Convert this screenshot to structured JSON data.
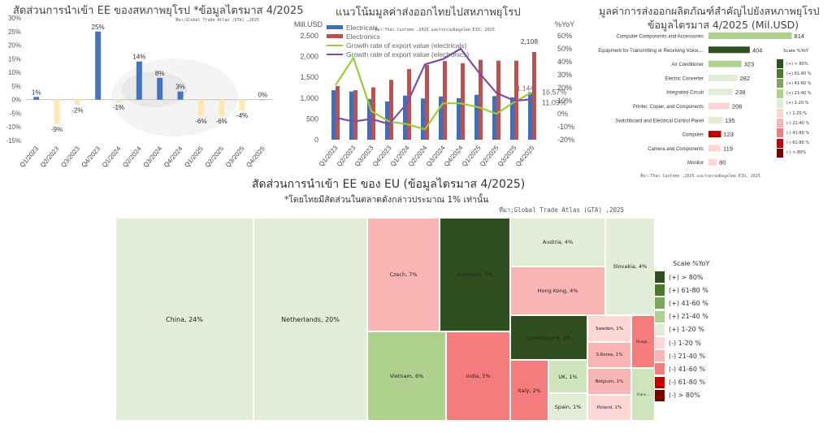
{
  "colors": {
    "bar_blue": "#4472c4",
    "bar_cream": "#ffe7b3",
    "electricals": "#3b6fbf",
    "electronics": "#c0504d",
    "growth_electricals": "#9acd32",
    "growth_electronics": "#7b4fa8",
    "scale": [
      "#2f4f1f",
      "#4a7a2c",
      "#7aa85a",
      "#aed18e",
      "#e2edd7",
      "#ffd6d6",
      "#f9b4b4",
      "#f47c7c",
      "#c00000",
      "#7a0000"
    ]
  },
  "scale": {
    "title": "Scale %YoY",
    "labels": [
      "(+) > 80%",
      "(+) 61-80 %",
      "(+) 41-60 %",
      "(+) 21-40 %",
      "(+) 1-20 %",
      "(-) 1-20 %",
      "(-) 21-40 %",
      "(-) 41-60 %",
      "(-) 61-80 %",
      "(-) > 80%"
    ]
  },
  "small_scale": {
    "title": "Scale %YoY",
    "labels": [
      "(+) > 80%",
      "(+) 61-80 %",
      "(+) 41-60 %",
      "(+) 21-40 %",
      "(+) 1-20 %",
      "(-) 1-20 %",
      "(-) 21-40 %",
      "(-) 41-60 %",
      "(-) 61-80 %",
      "(-) > 80%"
    ]
  },
  "chart_data": [
    {
      "id": "left",
      "type": "bar",
      "title": "สัดส่วนการนำเข้า EE ของสหภาพยุโรป *ข้อมูลไตรมาส 4/2025",
      "source": "ที่มา;Global Trade Atlas (GTA) ,2025",
      "categories": [
        "Q1/2023",
        "Q2/2023",
        "Q3/2023",
        "Q4/2023",
        "Q1/2024",
        "Q2/2024",
        "Q3/2024",
        "Q4/2024",
        "Q1/2025",
        "Q2/2025",
        "Q3/2025",
        "Q4/2025"
      ],
      "values": [
        1,
        -9,
        -2,
        25,
        -1,
        14,
        8,
        3,
        -6,
        -6,
        -4,
        0
      ],
      "labels": [
        "1%",
        "-9%",
        "-2%",
        "25%",
        "-1%",
        "14%",
        "8%",
        "3%",
        "-6%",
        "-6%",
        "-4%",
        "0%"
      ],
      "ylim": [
        -15,
        30
      ],
      "yticks": [
        "30%",
        "25%",
        "20%",
        "15%",
        "10%",
        "5%",
        "0%",
        "-5%",
        "-10%",
        "-15%"
      ]
    },
    {
      "id": "middle",
      "type": "bar+line",
      "title": "แนวโน้มมูลค่าส่งออกไทยไปสหภาพยุโรป",
      "source": "ที่มา:Thai Customs ,2025 และรวบรวมข้อมูลโดย EIU, 2025",
      "ylabel_left": "Mill.USD",
      "ylabel_right": "%YoY",
      "categories": [
        "Q1/2023",
        "Q2/2023",
        "Q3/2023",
        "Q4/2023",
        "Q1/2024",
        "Q2/2024",
        "Q3/2024",
        "Q4/2024",
        "Q1/2025",
        "Q2/2025",
        "Q3/2025",
        "Q4/2025"
      ],
      "ylim_left": [
        0,
        2500
      ],
      "yticks_left": [
        "2,500",
        "2,000",
        "1,500",
        "1,000",
        "500",
        "0"
      ],
      "ylim_right": [
        -20,
        60
      ],
      "yticks_right": [
        "60%",
        "50%",
        "40%",
        "30%",
        "20%",
        "10%",
        "0%",
        "-10%",
        "-20%"
      ],
      "series": [
        {
          "name": "Electricals",
          "kind": "bar",
          "values": [
            1190,
            1160,
            980,
            920,
            1060,
            990,
            1040,
            1000,
            1080,
            1050,
            1020,
            1144
          ]
        },
        {
          "name": "Electronics",
          "kind": "bar",
          "values": [
            1290,
            1190,
            1260,
            1440,
            1700,
            1800,
            1890,
            1840,
            1920,
            1900,
            1900,
            2108
          ]
        },
        {
          "name": "Growth rate of export value (electricals)",
          "kind": "line",
          "values": [
            22,
            43,
            2,
            -6,
            -8,
            -12,
            8,
            8,
            5,
            0,
            9,
            16.57
          ]
        },
        {
          "name": "Growth rate of export value (electronics)",
          "kind": "line",
          "values": [
            -3,
            -6,
            -4,
            -8,
            8,
            38,
            42,
            50,
            32,
            16,
            10,
            11.09
          ]
        }
      ],
      "point_labels": {
        "electricals_last": "1,144",
        "electronics_last": "2,108",
        "growth_electricals_last": "16.57%",
        "growth_electronics_last": "11.09%"
      }
    },
    {
      "id": "right",
      "type": "bar",
      "orientation": "horizontal",
      "title_line1": "มูลค่าการส่งออกผลิตภัณฑ์สำคัญไปยังสหภาพยุโรป",
      "title_line2": "ข้อมูลไตรมาส 4/2025 (Mil.USD)",
      "source": "ที่มา:Thai Customs ,2025 และรวบรวมข้อมูลโดย EIU, 2025",
      "categories": [
        "Computer Components and Accessories",
        "Equipment for Transmitting or Receiving Voice,...",
        "Air Conditioner",
        "Electric Converter",
        "Integrated Circuit",
        "Printer, Copier, and Components",
        "Switchboard and Electrical Control Panel",
        "Computer",
        "Camera and Components",
        "Monitor"
      ],
      "values": [
        814,
        404,
        323,
        282,
        238,
        206,
        135,
        123,
        119,
        80
      ],
      "labels": [
        "814",
        "404",
        "323",
        "282",
        "238",
        "206",
        "135",
        "123",
        "119",
        "80"
      ],
      "bar_colors": [
        "#aed18e",
        "#2f4f1f",
        "#aed18e",
        "#e2edd7",
        "#e2edd7",
        "#ffd6d6",
        "#e2edd7",
        "#c00000",
        "#ffd6d6",
        "#ffd6d6"
      ]
    },
    {
      "id": "treemap",
      "type": "treemap",
      "title": "สัดส่วนการนำเข้า EE ของ EU (ข้อมูลไตรมาส 4/2025)",
      "subtitle": "*โดยไทยมีสัดส่วนในตลาดดังกล่าวประมาณ 1% เท่านั้น",
      "source": "ที่มา;Global Trade Atlas (GTA) ,2025",
      "items": [
        {
          "label": "China, 24%",
          "share": 24,
          "color": "#e2edd7"
        },
        {
          "label": "Netherlands, 20%",
          "share": 20,
          "color": "#e2edd7"
        },
        {
          "label": "Czech, 7%",
          "share": 7,
          "color": "#f9b4b4"
        },
        {
          "label": "Germany, 7%",
          "share": 7,
          "color": "#2f4f1f"
        },
        {
          "label": "Austria, 4%",
          "share": 4,
          "color": "#e2edd7"
        },
        {
          "label": "Slovakia, 4%",
          "share": 4,
          "color": "#e2edd7"
        },
        {
          "label": "Hong Kong, 4%",
          "share": 4,
          "color": "#f9b4b4"
        },
        {
          "label": "Vietnam, 6%",
          "share": 6,
          "color": "#aed18e"
        },
        {
          "label": "India, 5%",
          "share": 5,
          "color": "#f47c7c"
        },
        {
          "label": "Luxembourg, 3%",
          "share": 3,
          "color": "#2f4f1f"
        },
        {
          "label": "Italy, 2%",
          "share": 2,
          "color": "#f47c7c"
        },
        {
          "label": "UK, 1%",
          "share": 1,
          "color": "#cfe3bd"
        },
        {
          "label": "Spain, 1%",
          "share": 1,
          "color": "#e2edd7"
        },
        {
          "label": "Sweden, 1%",
          "share": 1,
          "color": "#ffd6d6"
        },
        {
          "label": "S.Korea, 1%",
          "share": 1,
          "color": "#f9b4b4"
        },
        {
          "label": "Belgium, 1%",
          "share": 1,
          "color": "#f9b4b4"
        },
        {
          "label": "Poland, 1%",
          "share": 1,
          "color": "#ffd6d6"
        },
        {
          "label": "Hunga...",
          "share": 0.5,
          "color": "#f47c7c"
        },
        {
          "label": "Franc...",
          "share": 0.5,
          "color": "#cfe3bd"
        }
      ]
    }
  ]
}
